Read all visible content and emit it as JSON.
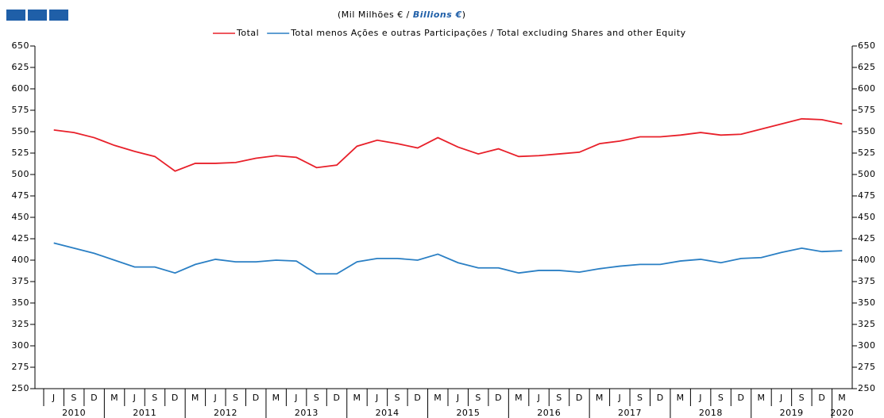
{
  "chart_data": {
    "type": "line",
    "title": "(Mil Milhões € / ",
    "title_en": "Billions  €",
    "title_close": ")",
    "categories": [
      "J",
      "S",
      "D",
      "M",
      "J",
      "S",
      "D",
      "M",
      "J",
      "S",
      "D",
      "M",
      "J",
      "S",
      "D",
      "M",
      "J",
      "S",
      "D",
      "M",
      "J",
      "S",
      "D",
      "M",
      "J",
      "S",
      "D",
      "M",
      "J",
      "S",
      "D",
      "M",
      "J",
      "S",
      "D",
      "M",
      "J",
      "S",
      "D",
      "M"
    ],
    "years": [
      "2010",
      "2011",
      "2012",
      "2013",
      "2014",
      "2015",
      "2016",
      "2017",
      "2018",
      "2019",
      "2020"
    ],
    "series": [
      {
        "name": "Total",
        "color": "#e8202a",
        "values": [
          552,
          549,
          543,
          534,
          527,
          521,
          504,
          513,
          513,
          514,
          519,
          522,
          520,
          508,
          511,
          533,
          540,
          536,
          531,
          543,
          532,
          524,
          530,
          521,
          522,
          524,
          526,
          536,
          539,
          544,
          544,
          546,
          549,
          546,
          547,
          553,
          559,
          565,
          564,
          559
        ]
      },
      {
        "name": "Total menos Ações e outras Participações / Total excluding Shares and other Equity",
        "color": "#2a7fc4",
        "values": [
          420,
          414,
          408,
          400,
          392,
          392,
          385,
          395,
          401,
          398,
          398,
          400,
          399,
          384,
          384,
          398,
          402,
          402,
          400,
          407,
          397,
          391,
          391,
          385,
          388,
          388,
          386,
          390,
          393,
          395,
          395,
          399,
          401,
          397,
          402,
          403,
          409,
          414,
          410,
          411
        ]
      }
    ],
    "ylim": [
      250,
      650
    ],
    "yticks": [
      250,
      275,
      300,
      325,
      350,
      375,
      400,
      425,
      450,
      475,
      500,
      525,
      550,
      575,
      600,
      625,
      650
    ]
  }
}
